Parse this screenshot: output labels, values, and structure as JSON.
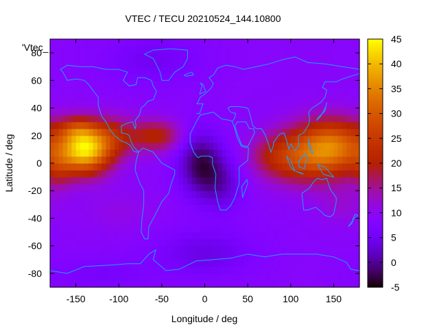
{
  "chart_data": {
    "type": "heatmap",
    "title": "VTEC / TECU 20210524_144.10800",
    "xlabel": "Longitude / deg",
    "ylabel": "Latitude / deg",
    "xlim": [
      -180,
      180
    ],
    "ylim": [
      -90,
      90
    ],
    "clim": [
      -5,
      45
    ],
    "key_label": "'Vtec_",
    "xticks": [
      -150,
      -100,
      -50,
      0,
      50,
      100,
      150
    ],
    "yticks": [
      80,
      60,
      40,
      20,
      0,
      -20,
      -40,
      -60,
      -80
    ],
    "cbticks": [
      45,
      40,
      35,
      30,
      25,
      20,
      15,
      10,
      5,
      0,
      -5
    ],
    "colormap": "gnuplot-pm3d-black-purple-red-yellow",
    "coastline_color": "#1ea0ff",
    "field_model": {
      "background": 9,
      "features": [
        {
          "lon": -140,
          "lat": 10,
          "sigma_lon": 22,
          "sigma_lat": 12,
          "amp": 33
        },
        {
          "lon": -150,
          "lat": 25,
          "sigma_lon": 15,
          "sigma_lat": 6,
          "amp": 8
        },
        {
          "lon": -105,
          "lat": 20,
          "sigma_lon": 22,
          "sigma_lat": 10,
          "amp": 9
        },
        {
          "lon": -55,
          "lat": 20,
          "sigma_lon": 20,
          "sigma_lat": 8,
          "amp": 11
        },
        {
          "lon": 150,
          "lat": 12,
          "sigma_lon": 28,
          "sigma_lat": 14,
          "amp": 22
        },
        {
          "lon": 110,
          "lat": 5,
          "sigma_lon": 30,
          "sigma_lat": 14,
          "amp": 13
        },
        {
          "lon": 80,
          "lat": 5,
          "sigma_lon": 22,
          "sigma_lat": 10,
          "amp": 5
        },
        {
          "lon": -170,
          "lat": -5,
          "sigma_lon": 12,
          "sigma_lat": 10,
          "amp": 6
        },
        {
          "lon": -5,
          "lat": 0,
          "sigma_lon": 18,
          "sigma_lat": 16,
          "amp": -11
        },
        {
          "lon": 20,
          "lat": -15,
          "sigma_lon": 18,
          "sigma_lat": 14,
          "amp": -6
        },
        {
          "lon": 0,
          "lat": -65,
          "sigma_lon": 40,
          "sigma_lat": 12,
          "amp": -5
        },
        {
          "lon": -60,
          "lat": 75,
          "sigma_lon": 40,
          "sigma_lat": 12,
          "amp": -4
        },
        {
          "lon": -120,
          "lat": -80,
          "sigma_lon": 40,
          "sigma_lat": 8,
          "amp": -3
        },
        {
          "lon": 160,
          "lat": -30,
          "sigma_lon": 20,
          "sigma_lat": 10,
          "amp": 3
        },
        {
          "lon": -100,
          "lat": -35,
          "sigma_lon": 30,
          "sigma_lat": 10,
          "amp": 2
        }
      ]
    }
  }
}
